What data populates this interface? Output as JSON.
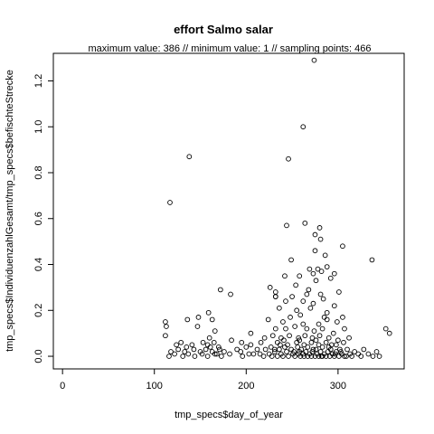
{
  "chart_data": {
    "type": "scatter",
    "title": "effort Salmo salar",
    "subtitle": "maximum value: 386  //  minimum value: 1  // sampling points: 466",
    "xlabel": "tmp_specs$day_of_year",
    "ylabel": "tmp_specs$IndividuenzahlGesamt/tmp_specs$befischteStrecke",
    "xlim": [
      -10,
      372
    ],
    "ylim": [
      -0.055,
      1.32
    ],
    "x_ticks": [
      0,
      100,
      200,
      300
    ],
    "y_ticks": [
      0.0,
      0.2,
      0.4,
      0.6,
      0.8,
      1.0,
      1.2
    ],
    "grid": false,
    "point_color": "#000000",
    "points": [
      [
        117,
        0.67
      ],
      [
        138,
        0.87
      ],
      [
        274,
        1.29
      ],
      [
        262,
        1.0
      ],
      [
        246,
        0.86
      ],
      [
        264,
        0.58
      ],
      [
        244,
        0.57
      ],
      [
        280,
        0.56
      ],
      [
        275,
        0.53
      ],
      [
        281,
        0.51
      ],
      [
        305,
        0.48
      ],
      [
        275,
        0.46
      ],
      [
        337,
        0.42
      ],
      [
        286,
        0.44
      ],
      [
        249,
        0.42
      ],
      [
        296,
        0.36
      ],
      [
        269,
        0.38
      ],
      [
        278,
        0.38
      ],
      [
        282,
        0.37
      ],
      [
        288,
        0.39
      ],
      [
        273,
        0.36
      ],
      [
        258,
        0.35
      ],
      [
        254,
        0.31
      ],
      [
        242,
        0.35
      ],
      [
        276,
        0.33
      ],
      [
        292,
        0.34
      ],
      [
        268,
        0.29
      ],
      [
        226,
        0.3
      ],
      [
        301,
        0.28
      ],
      [
        266,
        0.27
      ],
      [
        281,
        0.27
      ],
      [
        250,
        0.26
      ],
      [
        262,
        0.24
      ],
      [
        284,
        0.25
      ],
      [
        273,
        0.23
      ],
      [
        232,
        0.28
      ],
      [
        232,
        0.26
      ],
      [
        243,
        0.24
      ],
      [
        172,
        0.29
      ],
      [
        183,
        0.27
      ],
      [
        255,
        0.2
      ],
      [
        270,
        0.21
      ],
      [
        288,
        0.19
      ],
      [
        296,
        0.22
      ],
      [
        305,
        0.17
      ],
      [
        236,
        0.21
      ],
      [
        285,
        0.17
      ],
      [
        248,
        0.17
      ],
      [
        259,
        0.18
      ],
      [
        112,
        0.15
      ],
      [
        113,
        0.13
      ],
      [
        136,
        0.16
      ],
      [
        148,
        0.17
      ],
      [
        163,
        0.16
      ],
      [
        159,
        0.19
      ],
      [
        224,
        0.16
      ],
      [
        240,
        0.15
      ],
      [
        262,
        0.14
      ],
      [
        279,
        0.14
      ],
      [
        288,
        0.16
      ],
      [
        299,
        0.15
      ],
      [
        307,
        0.12
      ],
      [
        232,
        0.12
      ],
      [
        243,
        0.12
      ],
      [
        253,
        0.13
      ],
      [
        266,
        0.12
      ],
      [
        274,
        0.11
      ],
      [
        283,
        0.12
      ],
      [
        295,
        0.1
      ],
      [
        352,
        0.12
      ],
      [
        356,
        0.1
      ],
      [
        112,
        0.09
      ],
      [
        147,
        0.13
      ],
      [
        160,
        0.08
      ],
      [
        166,
        0.11
      ],
      [
        205,
        0.1
      ],
      [
        220,
        0.08
      ],
      [
        229,
        0.09
      ],
      [
        238,
        0.08
      ],
      [
        247,
        0.09
      ],
      [
        257,
        0.08
      ],
      [
        264,
        0.09
      ],
      [
        272,
        0.08
      ],
      [
        280,
        0.09
      ],
      [
        290,
        0.08
      ],
      [
        300,
        0.07
      ],
      [
        312,
        0.08
      ],
      [
        184,
        0.07
      ],
      [
        195,
        0.06
      ],
      [
        205,
        0.05
      ],
      [
        216,
        0.06
      ],
      [
        234,
        0.06
      ],
      [
        245,
        0.05
      ],
      [
        255,
        0.06
      ],
      [
        263,
        0.05
      ],
      [
        271,
        0.06
      ],
      [
        279,
        0.05
      ],
      [
        287,
        0.06
      ],
      [
        298,
        0.05
      ],
      [
        306,
        0.06
      ],
      [
        124,
        0.05
      ],
      [
        129,
        0.06
      ],
      [
        141,
        0.05
      ],
      [
        153,
        0.06
      ],
      [
        158,
        0.05
      ],
      [
        165,
        0.06
      ],
      [
        170,
        0.04
      ],
      [
        190,
        0.03
      ],
      [
        200,
        0.04
      ],
      [
        212,
        0.03
      ],
      [
        221,
        0.03
      ],
      [
        227,
        0.04
      ],
      [
        236,
        0.03
      ],
      [
        242,
        0.04
      ],
      [
        249,
        0.03
      ],
      [
        256,
        0.04
      ],
      [
        260,
        0.03
      ],
      [
        267,
        0.04
      ],
      [
        276,
        0.03
      ],
      [
        283,
        0.04
      ],
      [
        292,
        0.03
      ],
      [
        302,
        0.03
      ],
      [
        310,
        0.03
      ],
      [
        318,
        0.02
      ],
      [
        328,
        0.03
      ],
      [
        118,
        0.02
      ],
      [
        126,
        0.03
      ],
      [
        133,
        0.02
      ],
      [
        143,
        0.03
      ],
      [
        150,
        0.02
      ],
      [
        156,
        0.03
      ],
      [
        163,
        0.02
      ],
      [
        168,
        0.01
      ],
      [
        176,
        0.02
      ],
      [
        215,
        0.01
      ],
      [
        225,
        0.01
      ],
      [
        231,
        0.02
      ],
      [
        238,
        0.01
      ],
      [
        244,
        0.02
      ],
      [
        251,
        0.01
      ],
      [
        258,
        0.02
      ],
      [
        262,
        0.01
      ],
      [
        265,
        0.02
      ],
      [
        269,
        0.01
      ],
      [
        272,
        0.02
      ],
      [
        277,
        0.01
      ],
      [
        281,
        0.02
      ],
      [
        285,
        0.01
      ],
      [
        289,
        0.02
      ],
      [
        294,
        0.01
      ],
      [
        298,
        0.02
      ],
      [
        304,
        0.01
      ],
      [
        313,
        0.01
      ],
      [
        322,
        0.01
      ],
      [
        333,
        0.01
      ],
      [
        342,
        0.02
      ],
      [
        116,
        0.0
      ],
      [
        122,
        0.01
      ],
      [
        131,
        0.0
      ],
      [
        137,
        0.01
      ],
      [
        144,
        0.0
      ],
      [
        152,
        0.01
      ],
      [
        158,
        0.0
      ],
      [
        166,
        0.01
      ],
      [
        173,
        0.0
      ],
      [
        182,
        0.01
      ],
      [
        196,
        0.0
      ],
      [
        208,
        0.01
      ],
      [
        219,
        0.0
      ],
      [
        228,
        0.0
      ],
      [
        234,
        0.0
      ],
      [
        240,
        0.0
      ],
      [
        246,
        0.0
      ],
      [
        253,
        0.0
      ],
      [
        259,
        0.0
      ],
      [
        263,
        0.0
      ],
      [
        267,
        0.0
      ],
      [
        271,
        0.0
      ],
      [
        275,
        0.0
      ],
      [
        279,
        0.0
      ],
      [
        283,
        0.0
      ],
      [
        287,
        0.0
      ],
      [
        291,
        0.0
      ],
      [
        296,
        0.0
      ],
      [
        301,
        0.0
      ],
      [
        307,
        0.0
      ],
      [
        315,
        0.0
      ],
      [
        325,
        0.0
      ],
      [
        338,
        0.0
      ],
      [
        345,
        0.0
      ],
      [
        171,
        0.03
      ],
      [
        194,
        0.02
      ],
      [
        203,
        0.01
      ],
      [
        231,
        0.03
      ],
      [
        237,
        0.05
      ],
      [
        252,
        0.02
      ],
      [
        257,
        0.01
      ],
      [
        273,
        0.03
      ],
      [
        282,
        0.0
      ],
      [
        290,
        0.04
      ],
      [
        297,
        0.01
      ],
      [
        303,
        0.02
      ],
      [
        309,
        0.0
      ],
      [
        135,
        0.04
      ],
      [
        161,
        0.04
      ],
      [
        232,
        0.26
      ],
      [
        241,
        0.07
      ],
      [
        258,
        0.07
      ],
      [
        276,
        0.07
      ],
      [
        293,
        0.05
      ]
    ]
  }
}
